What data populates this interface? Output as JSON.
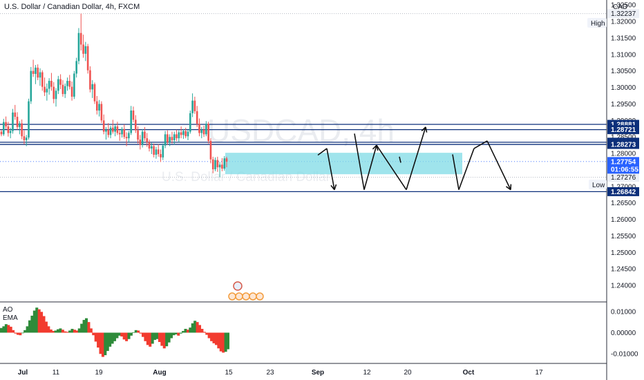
{
  "header": {
    "title": "U.S. Dollar / Canadian Dollar, 4h, FXCM",
    "currency": "CAD",
    "watermark_symbol": "USDCAD, 4h",
    "watermark_name": "U.S. Dollar / Canadian Dollar"
  },
  "indicator": {
    "name": "AO",
    "sub": "EMA"
  },
  "colors": {
    "up": "#26a69a",
    "down": "#ef5350",
    "line": "#0c2f7a",
    "zone": "#7fdbe6",
    "ao_up": "#2e8b3a",
    "ao_down": "#f23b2f",
    "price_tag": "#0c2f7a",
    "current_tag": "#2962ff"
  },
  "chart_data": {
    "type": "candlestick",
    "symbol": "USDCAD",
    "timeframe": "4h",
    "ylim": [
      1.235,
      1.3265
    ],
    "y_ticks": [
      "1.32500",
      "1.32000",
      "1.31500",
      "1.31000",
      "1.30500",
      "1.30000",
      "1.29500",
      "1.29000",
      "1.28500",
      "1.28000",
      "1.27500",
      "1.27000",
      "1.26500",
      "1.26000",
      "1.25500",
      "1.25000",
      "1.24500",
      "1.24000"
    ],
    "x_ticks": [
      "Jul",
      "11",
      "19",
      "Aug",
      "15",
      "23",
      "Sep",
      "12",
      "20",
      "Oct",
      "17"
    ],
    "high": {
      "label": "High",
      "value": "1.32237"
    },
    "low": {
      "label": "Low",
      "value": "1.27276"
    },
    "current": {
      "value": "1.27754",
      "countdown": "01:06:55"
    },
    "horizontal_levels": [
      "1.28881",
      "1.28721",
      "1.28340",
      "1.28273",
      "1.26842"
    ],
    "zone": {
      "top": 1.2802,
      "bottom": 1.2737
    },
    "price_path": [
      [
        1.2866,
        1.2872,
        1.2852,
        1.2858
      ],
      [
        1.2858,
        1.2905,
        1.2853,
        1.2895
      ],
      [
        1.2895,
        1.2912,
        1.2874,
        1.2882
      ],
      [
        1.2882,
        1.2896,
        1.2851,
        1.2862
      ],
      [
        1.2862,
        1.2878,
        1.2846,
        1.2868
      ],
      [
        1.2868,
        1.2935,
        1.286,
        1.2924
      ],
      [
        1.2924,
        1.2947,
        1.2902,
        1.2911
      ],
      [
        1.2911,
        1.2925,
        1.2872,
        1.288
      ],
      [
        1.288,
        1.2898,
        1.2858,
        1.2891
      ],
      [
        1.2891,
        1.2903,
        1.2843,
        1.2852
      ],
      [
        1.2852,
        1.287,
        1.2828,
        1.284
      ],
      [
        1.284,
        1.2856,
        1.2822,
        1.2848
      ],
      [
        1.2848,
        1.2966,
        1.2842,
        1.2958
      ],
      [
        1.2958,
        1.3062,
        1.295,
        1.305
      ],
      [
        1.305,
        1.3084,
        1.3032,
        1.3041
      ],
      [
        1.3041,
        1.3068,
        1.301,
        1.306
      ],
      [
        1.306,
        1.307,
        1.3022,
        1.303
      ],
      [
        1.303,
        1.3058,
        1.3005,
        1.3046
      ],
      [
        1.3046,
        1.3052,
        1.299,
        1.3002
      ],
      [
        1.3002,
        1.303,
        1.2974,
        1.2985
      ],
      [
        1.2985,
        1.3012,
        1.296,
        1.2996
      ],
      [
        1.2996,
        1.3028,
        1.2978,
        1.302
      ],
      [
        1.302,
        1.3044,
        1.299,
        1.3002
      ],
      [
        1.3002,
        1.3016,
        1.2952,
        1.2965
      ],
      [
        1.2965,
        1.2998,
        1.2942,
        1.299
      ],
      [
        1.299,
        1.3035,
        1.298,
        1.3025
      ],
      [
        1.3025,
        1.304,
        1.2995,
        1.3008
      ],
      [
        1.3008,
        1.3022,
        1.2972,
        1.298
      ],
      [
        1.298,
        1.3012,
        1.2968,
        1.3004
      ],
      [
        1.3004,
        1.303,
        1.299,
        1.302
      ],
      [
        1.302,
        1.3038,
        1.2994,
        1.3002
      ],
      [
        1.3002,
        1.3018,
        1.296,
        1.2972
      ],
      [
        1.2972,
        1.305,
        1.2965,
        1.3042
      ],
      [
        1.3042,
        1.309,
        1.303,
        1.308
      ],
      [
        1.308,
        1.318,
        1.307,
        1.3165
      ],
      [
        1.3165,
        1.3224,
        1.3112,
        1.313
      ],
      [
        1.313,
        1.316,
        1.309,
        1.3102
      ],
      [
        1.3102,
        1.3138,
        1.308,
        1.3125
      ],
      [
        1.3125,
        1.3132,
        1.3042,
        1.3052
      ],
      [
        1.3052,
        1.3064,
        1.2985,
        1.2994
      ],
      [
        1.2994,
        1.3022,
        1.2968,
        1.301
      ],
      [
        1.301,
        1.3015,
        1.295,
        1.2958
      ],
      [
        1.2958,
        1.2974,
        1.2918,
        1.293
      ],
      [
        1.293,
        1.2962,
        1.2912,
        1.295
      ],
      [
        1.295,
        1.2958,
        1.2892,
        1.29
      ],
      [
        1.29,
        1.2918,
        1.2858,
        1.2866
      ],
      [
        1.2866,
        1.288,
        1.2842,
        1.2872
      ],
      [
        1.2872,
        1.2892,
        1.2848,
        1.2856
      ],
      [
        1.2856,
        1.2884,
        1.2846,
        1.2878
      ],
      [
        1.2878,
        1.2902,
        1.286,
        1.2866
      ],
      [
        1.2866,
        1.2888,
        1.2852,
        1.2882
      ],
      [
        1.2882,
        1.2896,
        1.2856,
        1.2862
      ],
      [
        1.2862,
        1.287,
        1.2838,
        1.2858
      ],
      [
        1.2858,
        1.288,
        1.2848,
        1.2874
      ],
      [
        1.2874,
        1.2888,
        1.2844,
        1.285
      ],
      [
        1.285,
        1.2864,
        1.2822,
        1.2846
      ],
      [
        1.2846,
        1.2868,
        1.2834,
        1.2862
      ],
      [
        1.2862,
        1.2944,
        1.2856,
        1.293
      ],
      [
        1.293,
        1.2942,
        1.2894,
        1.2902
      ],
      [
        1.2902,
        1.2916,
        1.2862,
        1.287
      ],
      [
        1.287,
        1.2882,
        1.283,
        1.2842
      ],
      [
        1.2842,
        1.2856,
        1.2812,
        1.2826
      ],
      [
        1.2826,
        1.2874,
        1.2818,
        1.2866
      ],
      [
        1.2866,
        1.288,
        1.2838,
        1.2846
      ],
      [
        1.2846,
        1.2862,
        1.282,
        1.2834
      ],
      [
        1.2834,
        1.2842,
        1.2806,
        1.2815
      ],
      [
        1.2815,
        1.2832,
        1.2798,
        1.2822
      ],
      [
        1.2822,
        1.283,
        1.2788,
        1.2796
      ],
      [
        1.2796,
        1.282,
        1.2784,
        1.2812
      ],
      [
        1.2812,
        1.2828,
        1.279,
        1.2798
      ],
      [
        1.2798,
        1.2812,
        1.2774,
        1.2788
      ],
      [
        1.2788,
        1.283,
        1.278,
        1.2824
      ],
      [
        1.2824,
        1.2868,
        1.2816,
        1.2858
      ],
      [
        1.2858,
        1.287,
        1.2826,
        1.2834
      ],
      [
        1.2834,
        1.2858,
        1.2822,
        1.285
      ],
      [
        1.285,
        1.2866,
        1.283,
        1.284
      ],
      [
        1.284,
        1.2866,
        1.2826,
        1.2858
      ],
      [
        1.2858,
        1.2872,
        1.2838,
        1.2846
      ],
      [
        1.2846,
        1.287,
        1.2834,
        1.2864
      ],
      [
        1.2864,
        1.2882,
        1.2846,
        1.2856
      ],
      [
        1.2856,
        1.2874,
        1.2844,
        1.2868
      ],
      [
        1.2868,
        1.2878,
        1.2846,
        1.2852
      ],
      [
        1.2852,
        1.2872,
        1.284,
        1.2866
      ],
      [
        1.2866,
        1.293,
        1.286,
        1.2922
      ],
      [
        1.2922,
        1.2982,
        1.291,
        1.296
      ],
      [
        1.296,
        1.2972,
        1.292,
        1.2928
      ],
      [
        1.2928,
        1.2944,
        1.288,
        1.289
      ],
      [
        1.289,
        1.2906,
        1.2852,
        1.2862
      ],
      [
        1.2862,
        1.288,
        1.2846,
        1.2872
      ],
      [
        1.2872,
        1.2884,
        1.285,
        1.2858
      ],
      [
        1.2858,
        1.2898,
        1.2852,
        1.289
      ],
      [
        1.289,
        1.2896,
        1.283,
        1.2838
      ],
      [
        1.2838,
        1.2846,
        1.277,
        1.2782
      ],
      [
        1.2782,
        1.279,
        1.274,
        1.2752
      ],
      [
        1.2752,
        1.2788,
        1.2746,
        1.278
      ],
      [
        1.278,
        1.279,
        1.2744,
        1.2758
      ],
      [
        1.2758,
        1.2774,
        1.2728,
        1.2766
      ],
      [
        1.2766,
        1.2786,
        1.2746,
        1.2754
      ],
      [
        1.2754,
        1.2792,
        1.2748,
        1.2785
      ],
      [
        1.2785,
        1.279,
        1.2758,
        1.2775
      ]
    ],
    "projection_path": [
      [
        1.2795,
        1.2815,
        1.269,
        1.286,
        1.269,
        1.2825,
        1.269,
        1.288,
        1.269,
        1.2815,
        1.2838,
        1.269
      ],
      [
        1.2885,
        1.2885,
        1.2885,
        1.2885,
        1.2885,
        1.2885,
        1.2885,
        1.2885,
        1.2885,
        1.2885,
        1.2885,
        1.2885
      ]
    ],
    "ao": [
      0.0022,
      0.003,
      0.004,
      0.0036,
      0.0028,
      0.0012,
      -0.0004,
      -0.001,
      -0.0012,
      -0.0002,
      0.0012,
      0.003,
      0.0058,
      0.008,
      0.0104,
      0.0118,
      0.011,
      0.0098,
      0.0078,
      0.0052,
      0.003,
      0.0015,
      0.0008,
      0.001,
      0.0016,
      0.002,
      0.0014,
      0.0006,
      0.0004,
      0.001,
      0.0018,
      0.0014,
      0.001,
      0.002,
      0.0042,
      0.006,
      0.0068,
      0.005,
      0.002,
      -0.0012,
      -0.0042,
      -0.007,
      -0.01,
      -0.0114,
      -0.0106,
      -0.0086,
      -0.0066,
      -0.0052,
      -0.004,
      -0.0026,
      -0.0014,
      -0.0018,
      -0.0032,
      -0.004,
      -0.003,
      -0.0014,
      0.0002,
      0.0012,
      0.001,
      -0.0004,
      -0.002,
      -0.004,
      -0.0058,
      -0.0066,
      -0.0052,
      -0.0034,
      -0.003,
      -0.0044,
      -0.0062,
      -0.0074,
      -0.0064,
      -0.0046,
      -0.0026,
      -0.0012,
      -0.0008,
      -0.0014,
      -0.0004,
      0.0008,
      0.0018,
      0.0014,
      0.0024,
      0.0044,
      0.0056,
      0.005,
      0.0036,
      0.0018,
      0.0004,
      -0.001,
      -0.0026,
      -0.004,
      -0.005,
      -0.0058,
      -0.0074,
      -0.0088,
      -0.0094,
      -0.009,
      -0.0078
    ],
    "ao_ticks": [
      "0.01000",
      "0.00000",
      "-0.01000"
    ],
    "ao_ylim": [
      -0.0135,
      0.0135
    ]
  }
}
